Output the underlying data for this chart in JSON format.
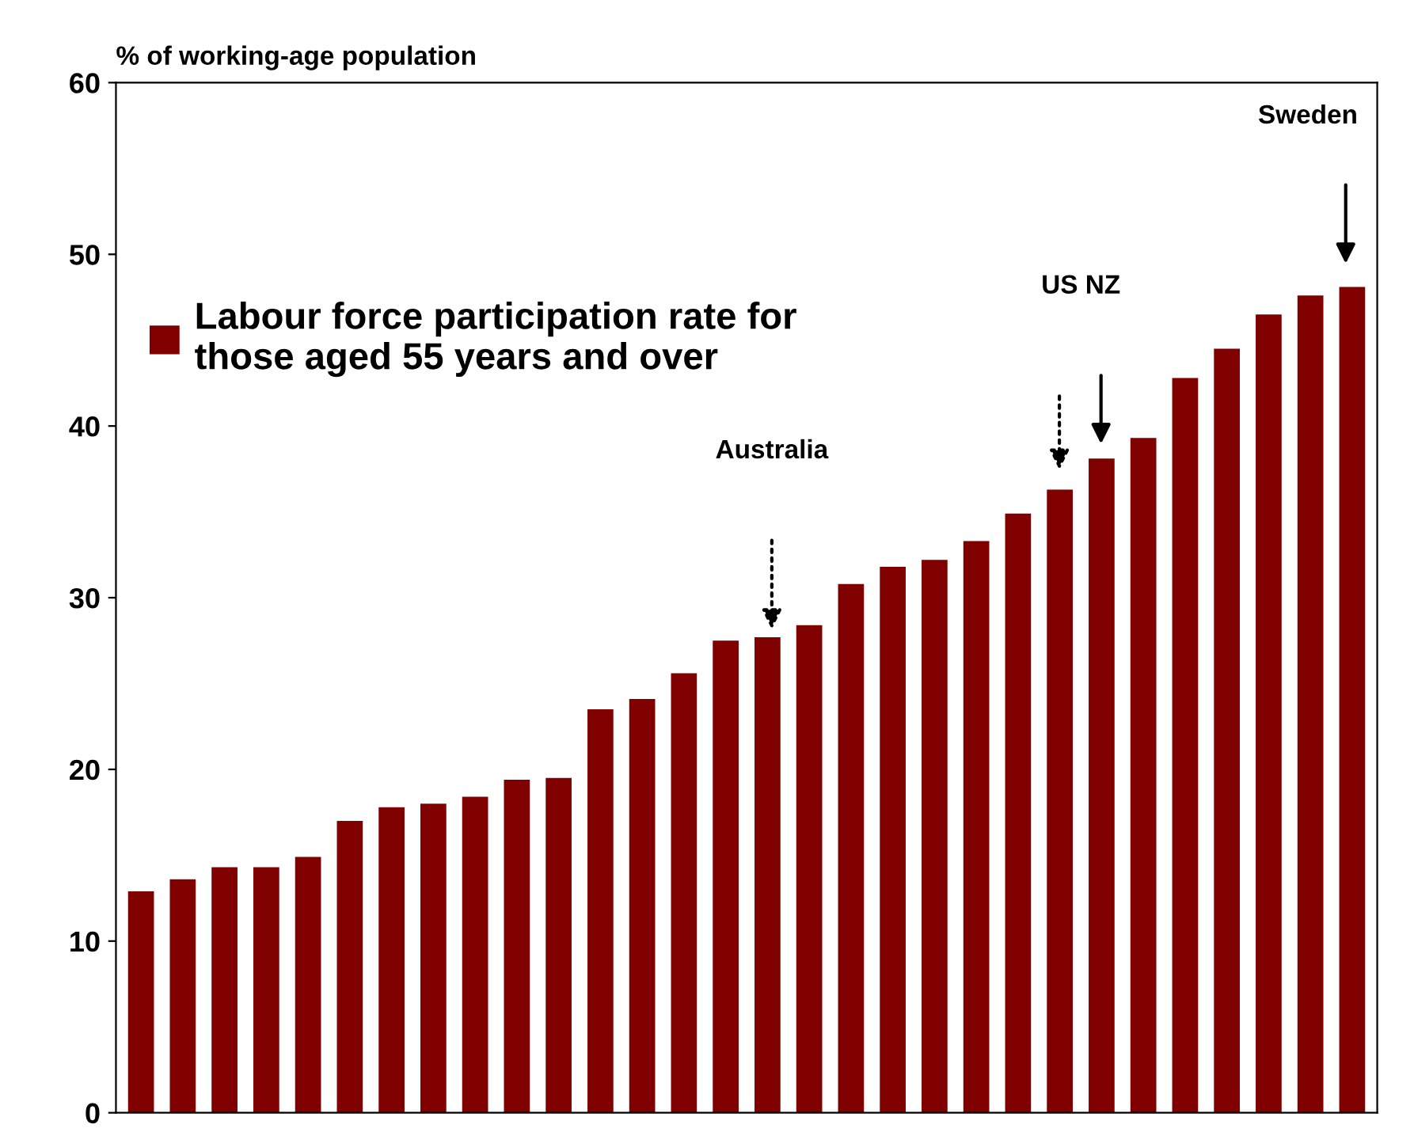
{
  "chart_data": {
    "type": "bar",
    "ylabel": "% of working-age population",
    "categories": [
      null,
      null,
      null,
      null,
      null,
      null,
      null,
      null,
      null,
      null,
      null,
      null,
      null,
      null,
      null,
      null,
      null,
      null,
      null,
      null,
      null,
      null,
      null,
      null,
      null,
      null,
      null,
      null,
      null,
      null
    ],
    "series": [
      {
        "name": "Labour force participation rate for\nthose aged 55 years and over",
        "color": "#800000",
        "values": [
          12.9,
          13.6,
          14.3,
          14.3,
          14.9,
          17.0,
          17.8,
          18.0,
          18.4,
          19.4,
          19.5,
          23.5,
          24.1,
          25.6,
          27.5,
          27.7,
          28.4,
          30.8,
          31.8,
          32.2,
          33.3,
          34.9,
          36.3,
          38.1,
          39.3,
          42.8,
          44.5,
          46.5,
          47.6,
          48.1
        ]
      }
    ],
    "ylim": [
      0,
      60
    ],
    "yticks": [
      0,
      10,
      20,
      30,
      40,
      50,
      60
    ],
    "grid": false,
    "legend": "top left",
    "annotations": [
      "Australia",
      "US NZ",
      "Sweden"
    ]
  }
}
